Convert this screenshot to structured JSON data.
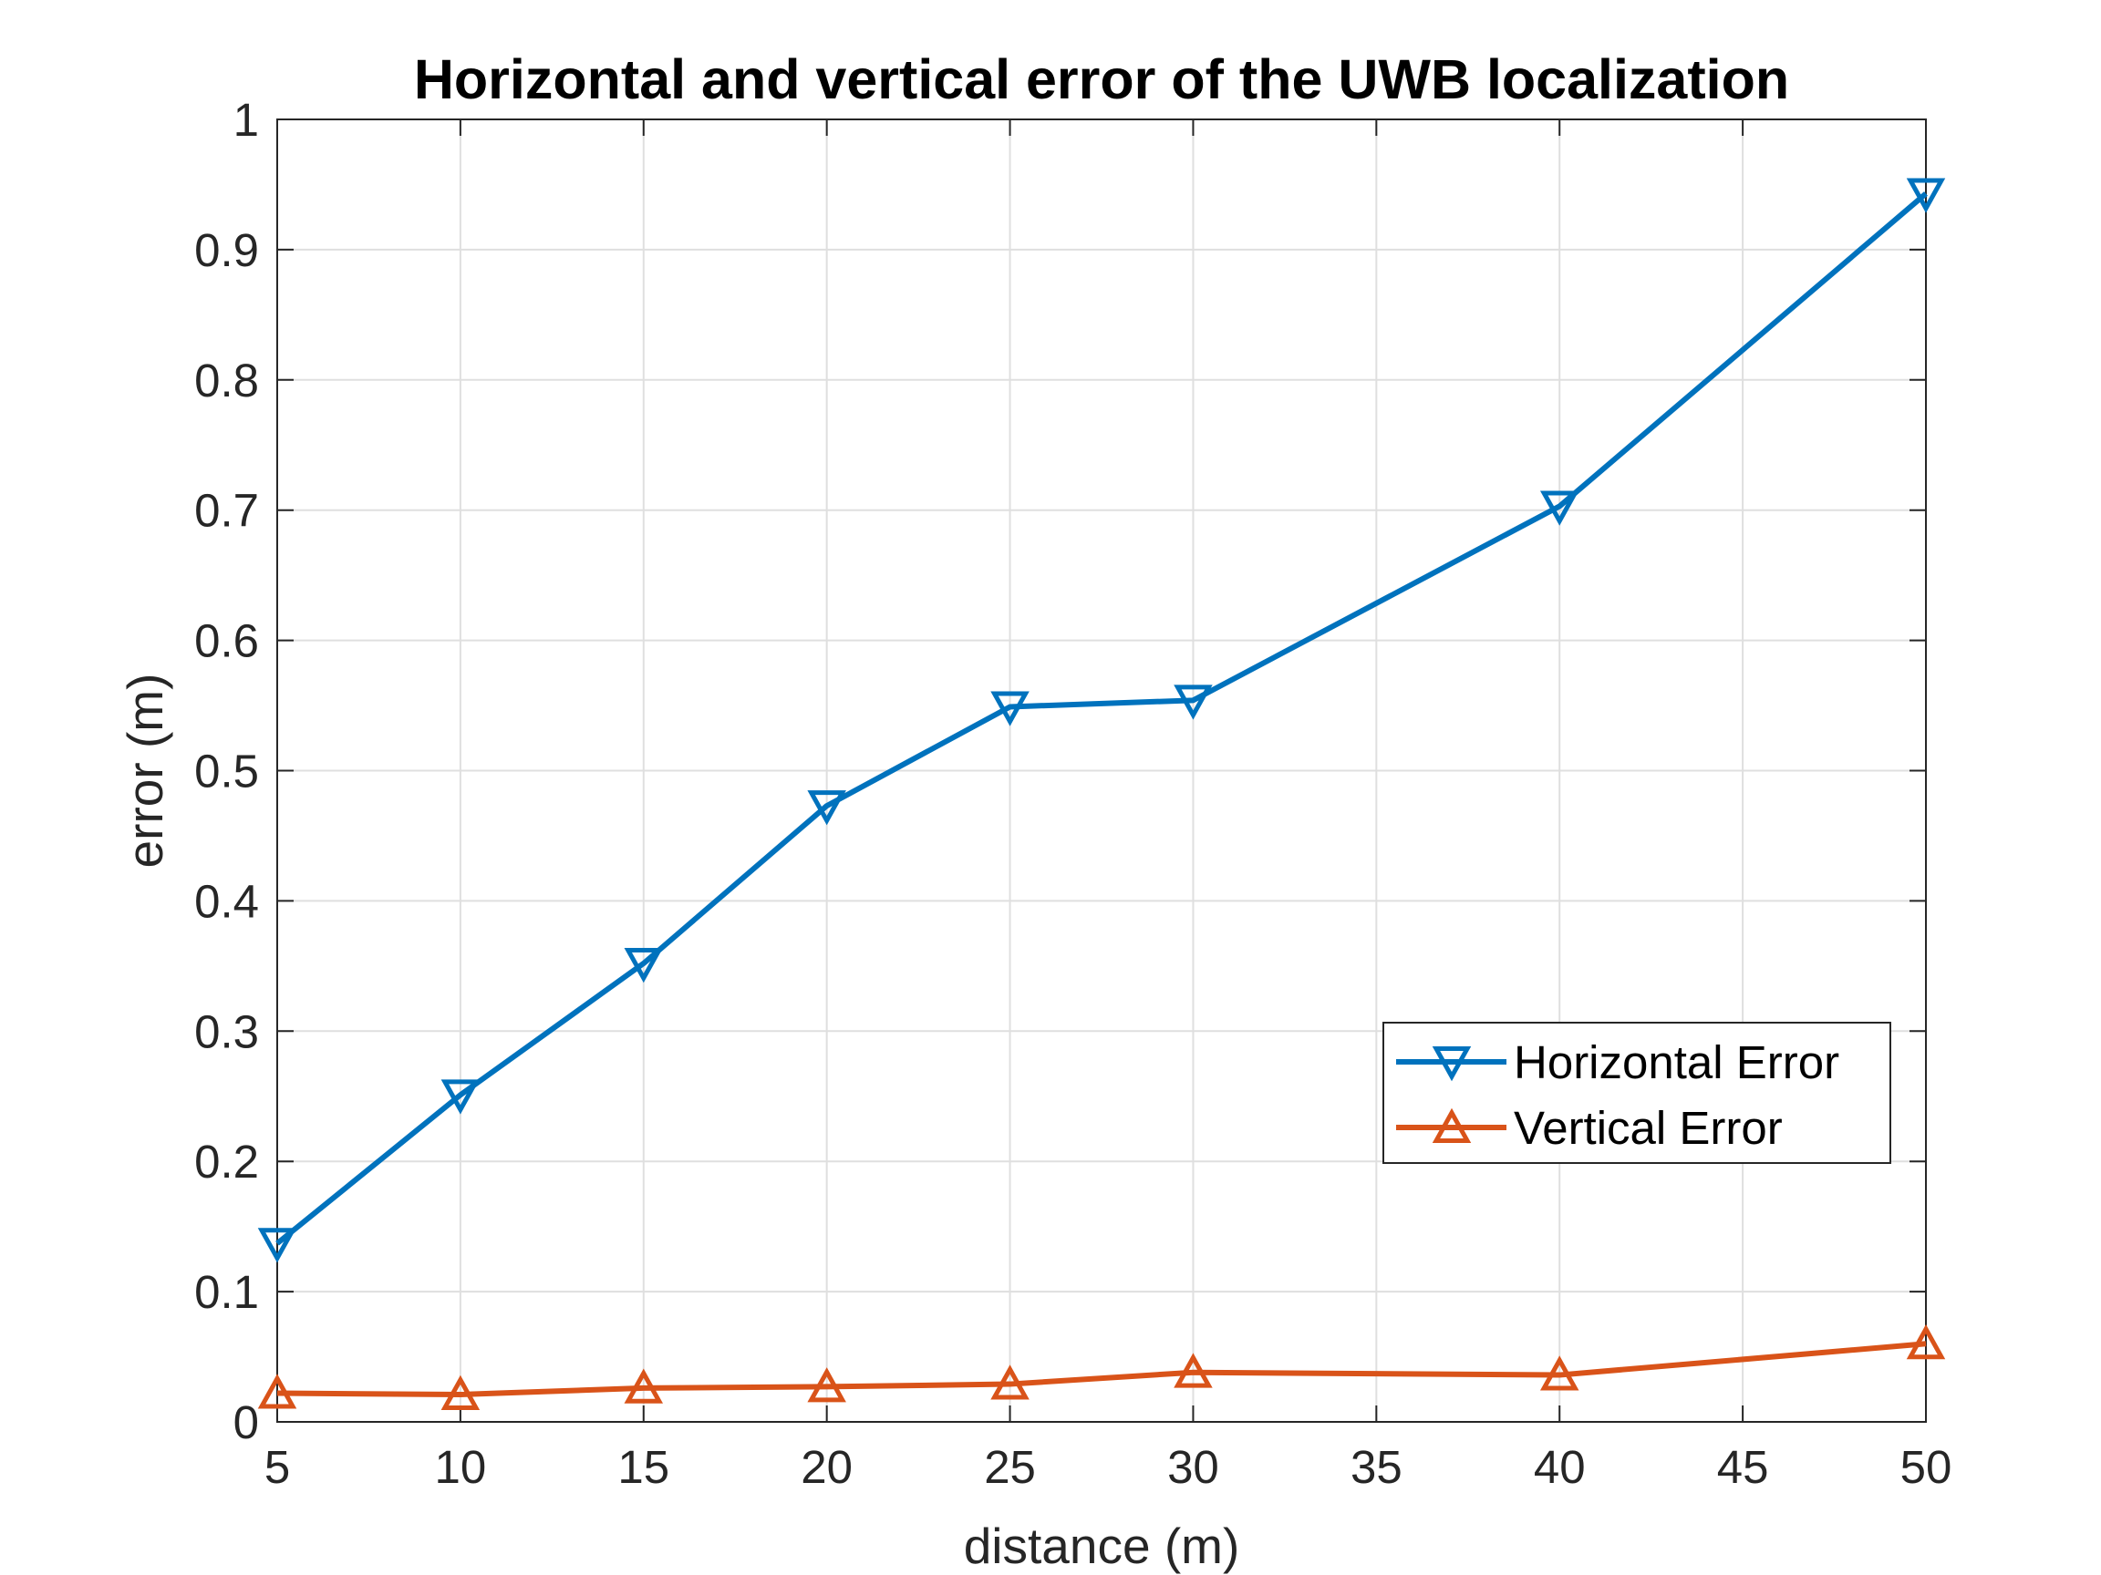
{
  "chart_data": {
    "type": "line",
    "title": "Horizontal and  vertical error of the UWB localization",
    "xlabel": "distance (m)",
    "ylabel": "error (m)",
    "xlim": [
      5,
      50
    ],
    "ylim": [
      0,
      1
    ],
    "xticks": [
      5,
      10,
      15,
      20,
      25,
      30,
      35,
      40,
      45,
      50
    ],
    "yticks": [
      0,
      0.1,
      0.2,
      0.3,
      0.4,
      0.5,
      0.6,
      0.7,
      0.8,
      0.9,
      1
    ],
    "ytick_labels": [
      "0",
      "0.1",
      "0.2",
      "0.3",
      "0.4",
      "0.5",
      "0.6",
      "0.7",
      "0.8",
      "0.9",
      "1"
    ],
    "grid": true,
    "legend_position": "lower-right",
    "x": [
      5,
      10,
      15,
      20,
      25,
      30,
      40,
      50
    ],
    "series": [
      {
        "name": "Horizontal Error",
        "color": "#0072BD",
        "marker": "triangle-down",
        "values": [
          0.137,
          0.251,
          0.352,
          0.473,
          0.549,
          0.554,
          0.703,
          0.943
        ]
      },
      {
        "name": "Vertical Error",
        "color": "#D95319",
        "marker": "triangle-up",
        "values": [
          0.022,
          0.021,
          0.026,
          0.027,
          0.029,
          0.038,
          0.036,
          0.06
        ]
      }
    ]
  }
}
